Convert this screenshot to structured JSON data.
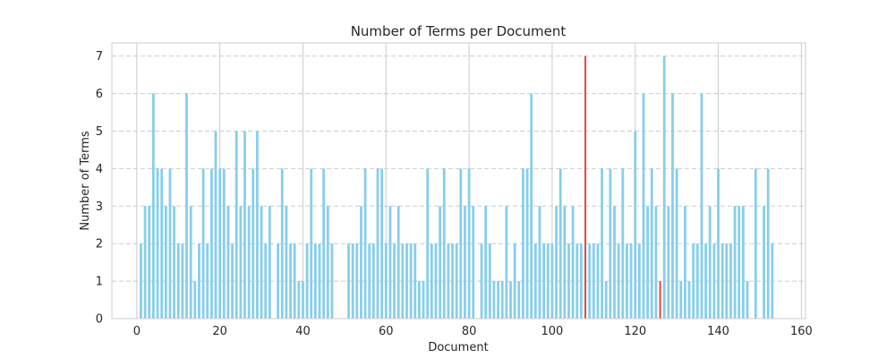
{
  "chart_data": {
    "type": "bar",
    "title": "Number of Terms per Document",
    "xlabel": "Document",
    "ylabel": "Number of Terms",
    "xlim": [
      -6,
      161
    ],
    "ylim": [
      0,
      7.35
    ],
    "x_ticks": [
      0,
      20,
      40,
      60,
      80,
      100,
      120,
      140,
      160
    ],
    "y_ticks": [
      0,
      1,
      2,
      3,
      4,
      5,
      6,
      7
    ],
    "x_tick_labels": [
      "0",
      "20",
      "40",
      "60",
      "80",
      "100",
      "120",
      "140",
      "160"
    ],
    "y_tick_labels": [
      "0",
      "1",
      "2",
      "3",
      "4",
      "5",
      "6",
      "7"
    ],
    "grid": true,
    "grid_style": "dashed",
    "colors": {
      "default": "#87ceeb",
      "highlight": "#e8453c",
      "grid": "#cccccc",
      "spine": "#cccccc",
      "text": "#262626"
    },
    "highlight_indices": [
      108,
      126
    ],
    "x": [
      1,
      2,
      3,
      4,
      5,
      6,
      7,
      8,
      9,
      10,
      11,
      12,
      13,
      14,
      15,
      16,
      17,
      18,
      19,
      20,
      21,
      22,
      23,
      24,
      25,
      26,
      27,
      28,
      29,
      30,
      31,
      32,
      33,
      34,
      35,
      36,
      37,
      38,
      39,
      40,
      41,
      42,
      43,
      44,
      45,
      46,
      47,
      48,
      49,
      50,
      51,
      52,
      53,
      54,
      55,
      56,
      57,
      58,
      59,
      60,
      61,
      62,
      63,
      64,
      65,
      66,
      67,
      68,
      69,
      70,
      71,
      72,
      73,
      74,
      75,
      76,
      77,
      78,
      79,
      80,
      81,
      82,
      83,
      84,
      85,
      86,
      87,
      88,
      89,
      90,
      91,
      92,
      93,
      94,
      95,
      96,
      97,
      98,
      99,
      100,
      101,
      102,
      103,
      104,
      105,
      106,
      107,
      108,
      109,
      110,
      111,
      112,
      113,
      114,
      115,
      116,
      117,
      118,
      119,
      120,
      121,
      122,
      123,
      124,
      125,
      126,
      127,
      128,
      129,
      130,
      131,
      132,
      133,
      134,
      135,
      136,
      137,
      138,
      139,
      140,
      141,
      142,
      143,
      144,
      145,
      146,
      147,
      148,
      149,
      150,
      151,
      152,
      153
    ],
    "values": [
      2,
      3,
      3,
      6,
      4,
      4,
      3,
      4,
      3,
      2,
      2,
      6,
      3,
      1,
      2,
      4,
      2,
      4,
      5,
      4,
      4,
      3,
      2,
      5,
      3,
      5,
      3,
      4,
      5,
      3,
      2,
      3,
      0,
      2,
      4,
      3,
      2,
      2,
      1,
      1,
      2,
      4,
      2,
      2,
      4,
      3,
      2,
      0,
      0,
      0,
      2,
      2,
      2,
      3,
      4,
      2,
      2,
      4,
      4,
      2,
      3,
      2,
      3,
      2,
      2,
      2,
      2,
      1,
      1,
      4,
      2,
      2,
      3,
      4,
      2,
      2,
      2,
      4,
      3,
      4,
      3,
      0,
      2,
      3,
      2,
      1,
      1,
      1,
      3,
      1,
      2,
      1,
      4,
      4,
      6,
      2,
      3,
      2,
      2,
      2,
      3,
      4,
      3,
      2,
      3,
      2,
      2,
      7,
      2,
      2,
      2,
      4,
      1,
      4,
      3,
      2,
      4,
      2,
      2,
      5,
      2,
      6,
      3,
      4,
      3,
      1,
      7,
      3,
      6,
      4,
      1,
      3,
      1,
      2,
      2,
      6,
      2,
      3,
      2,
      4,
      2,
      2,
      2,
      3,
      3,
      3,
      1,
      0,
      4,
      0,
      3,
      4,
      2
    ]
  }
}
